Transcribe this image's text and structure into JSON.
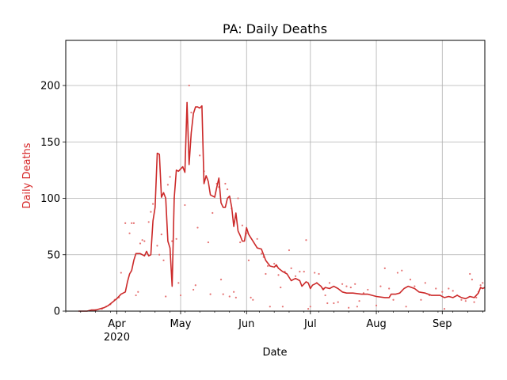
{
  "chart_data": {
    "type": "line",
    "title": "PA: Daily Deaths",
    "xlabel": "Date",
    "ylabel": "Daily Deaths",
    "ylabel_color": "#d62728",
    "line_color": "#cc2a2a",
    "dot_color": "#e57373",
    "grid": true,
    "legend": "none",
    "x_range": [
      "2020-03-08",
      "2020-09-21"
    ],
    "ylim": [
      0,
      240
    ],
    "yticks": [
      0,
      50,
      100,
      150,
      200
    ],
    "xticks": [
      {
        "date": "2020-04-01",
        "label": "Apr",
        "sublabel": "2020"
      },
      {
        "date": "2020-05-01",
        "label": "May",
        "sublabel": ""
      },
      {
        "date": "2020-06-01",
        "label": "Jun",
        "sublabel": ""
      },
      {
        "date": "2020-07-01",
        "label": "Jul",
        "sublabel": ""
      },
      {
        "date": "2020-08-01",
        "label": "Aug",
        "sublabel": ""
      },
      {
        "date": "2020-09-01",
        "label": "Sep",
        "sublabel": ""
      }
    ],
    "series": [
      {
        "kind": "line",
        "points": [
          [
            "2020-03-14",
            0
          ],
          [
            "2020-03-18",
            0
          ],
          [
            "2020-03-20",
            1
          ],
          [
            "2020-03-22",
            1
          ],
          [
            "2020-03-24",
            2
          ],
          [
            "2020-03-26",
            3
          ],
          [
            "2020-03-28",
            5
          ],
          [
            "2020-03-30",
            8
          ],
          [
            "2020-04-01",
            11
          ],
          [
            "2020-04-03",
            15
          ],
          [
            "2020-04-05",
            17
          ],
          [
            "2020-04-06",
            26
          ],
          [
            "2020-04-07",
            33
          ],
          [
            "2020-04-08",
            36
          ],
          [
            "2020-04-09",
            45
          ],
          [
            "2020-04-10",
            51
          ],
          [
            "2020-04-12",
            51
          ],
          [
            "2020-04-14",
            49
          ],
          [
            "2020-04-15",
            53
          ],
          [
            "2020-04-16",
            49
          ],
          [
            "2020-04-17",
            50
          ],
          [
            "2020-04-18",
            80
          ],
          [
            "2020-04-19",
            92
          ],
          [
            "2020-04-20",
            140
          ],
          [
            "2020-04-21",
            139
          ],
          [
            "2020-04-22",
            101
          ],
          [
            "2020-04-23",
            105
          ],
          [
            "2020-04-24",
            100
          ],
          [
            "2020-04-25",
            62
          ],
          [
            "2020-04-26",
            56
          ],
          [
            "2020-04-27",
            22
          ],
          [
            "2020-04-28",
            100
          ],
          [
            "2020-04-29",
            125
          ],
          [
            "2020-04-30",
            124
          ],
          [
            "2020-05-01",
            126
          ],
          [
            "2020-05-02",
            128
          ],
          [
            "2020-05-03",
            123
          ],
          [
            "2020-05-04",
            185
          ],
          [
            "2020-05-05",
            130
          ],
          [
            "2020-05-06",
            158
          ],
          [
            "2020-05-07",
            175
          ],
          [
            "2020-05-08",
            181
          ],
          [
            "2020-05-09",
            181
          ],
          [
            "2020-05-10",
            180
          ],
          [
            "2020-05-11",
            182
          ],
          [
            "2020-05-12",
            113
          ],
          [
            "2020-05-13",
            120
          ],
          [
            "2020-05-14",
            115
          ],
          [
            "2020-05-15",
            103
          ],
          [
            "2020-05-17",
            101
          ],
          [
            "2020-05-18",
            110
          ],
          [
            "2020-05-19",
            118
          ],
          [
            "2020-05-20",
            96
          ],
          [
            "2020-05-21",
            92
          ],
          [
            "2020-05-22",
            92
          ],
          [
            "2020-05-23",
            100
          ],
          [
            "2020-05-24",
            102
          ],
          [
            "2020-05-25",
            92
          ],
          [
            "2020-05-26",
            75
          ],
          [
            "2020-05-27",
            87
          ],
          [
            "2020-05-28",
            71
          ],
          [
            "2020-05-29",
            67
          ],
          [
            "2020-05-30",
            62
          ],
          [
            "2020-05-31",
            62
          ],
          [
            "2020-06-01",
            74
          ],
          [
            "2020-06-02",
            68
          ],
          [
            "2020-06-04",
            62
          ],
          [
            "2020-06-06",
            56
          ],
          [
            "2020-06-08",
            55
          ],
          [
            "2020-06-10",
            45
          ],
          [
            "2020-06-12",
            40
          ],
          [
            "2020-06-14",
            39
          ],
          [
            "2020-06-15",
            41
          ],
          [
            "2020-06-16",
            38
          ],
          [
            "2020-06-18",
            35
          ],
          [
            "2020-06-20",
            33
          ],
          [
            "2020-06-22",
            27
          ],
          [
            "2020-06-24",
            29
          ],
          [
            "2020-06-26",
            27
          ],
          [
            "2020-06-27",
            22
          ],
          [
            "2020-06-29",
            26
          ],
          [
            "2020-06-30",
            25
          ],
          [
            "2020-07-01",
            20
          ],
          [
            "2020-07-02",
            23
          ],
          [
            "2020-07-04",
            25
          ],
          [
            "2020-07-06",
            22
          ],
          [
            "2020-07-07",
            19
          ],
          [
            "2020-07-08",
            21
          ],
          [
            "2020-07-10",
            20
          ],
          [
            "2020-07-12",
            22
          ],
          [
            "2020-07-14",
            20
          ],
          [
            "2020-07-16",
            17
          ],
          [
            "2020-07-18",
            16
          ],
          [
            "2020-07-21",
            16
          ],
          [
            "2020-07-25",
            15
          ],
          [
            "2020-07-28",
            15
          ],
          [
            "2020-08-01",
            13
          ],
          [
            "2020-08-05",
            12
          ],
          [
            "2020-08-07",
            12
          ],
          [
            "2020-08-08",
            15
          ],
          [
            "2020-08-10",
            15
          ],
          [
            "2020-08-12",
            16
          ],
          [
            "2020-08-14",
            20
          ],
          [
            "2020-08-16",
            22
          ],
          [
            "2020-08-19",
            20
          ],
          [
            "2020-08-21",
            17
          ],
          [
            "2020-08-24",
            16
          ],
          [
            "2020-08-27",
            14
          ],
          [
            "2020-08-31",
            14
          ],
          [
            "2020-09-02",
            12
          ],
          [
            "2020-09-04",
            13
          ],
          [
            "2020-09-06",
            12
          ],
          [
            "2020-09-08",
            14
          ],
          [
            "2020-09-10",
            12
          ],
          [
            "2020-09-12",
            11
          ],
          [
            "2020-09-14",
            13
          ],
          [
            "2020-09-16",
            12
          ],
          [
            "2020-09-18",
            16
          ],
          [
            "2020-09-19",
            21
          ],
          [
            "2020-09-20",
            20
          ],
          [
            "2020-09-21",
            21
          ]
        ]
      },
      {
        "kind": "scatter",
        "points": [
          [
            "2020-03-22",
            1
          ],
          [
            "2020-03-25",
            2
          ],
          [
            "2020-03-27",
            4
          ],
          [
            "2020-03-29",
            6
          ],
          [
            "2020-03-31",
            10
          ],
          [
            "2020-04-02",
            12
          ],
          [
            "2020-04-03",
            34
          ],
          [
            "2020-04-05",
            78
          ],
          [
            "2020-04-07",
            69
          ],
          [
            "2020-04-08",
            78
          ],
          [
            "2020-04-09",
            78
          ],
          [
            "2020-04-10",
            14
          ],
          [
            "2020-04-11",
            17
          ],
          [
            "2020-04-12",
            60
          ],
          [
            "2020-04-13",
            63
          ],
          [
            "2020-04-14",
            62
          ],
          [
            "2020-04-16",
            79
          ],
          [
            "2020-04-17",
            88
          ],
          [
            "2020-04-18",
            95
          ],
          [
            "2020-04-20",
            58
          ],
          [
            "2020-04-21",
            50
          ],
          [
            "2020-04-22",
            68
          ],
          [
            "2020-04-23",
            45
          ],
          [
            "2020-04-24",
            13
          ],
          [
            "2020-04-25",
            112
          ],
          [
            "2020-04-26",
            119
          ],
          [
            "2020-04-27",
            62
          ],
          [
            "2020-04-28",
            100
          ],
          [
            "2020-04-29",
            64
          ],
          [
            "2020-04-30",
            25
          ],
          [
            "2020-05-01",
            14
          ],
          [
            "2020-05-03",
            94
          ],
          [
            "2020-05-05",
            200
          ],
          [
            "2020-05-06",
            176
          ],
          [
            "2020-05-07",
            19
          ],
          [
            "2020-05-08",
            23
          ],
          [
            "2020-05-09",
            74
          ],
          [
            "2020-05-10",
            138
          ],
          [
            "2020-05-12",
            124
          ],
          [
            "2020-05-14",
            61
          ],
          [
            "2020-05-15",
            15
          ],
          [
            "2020-05-16",
            87
          ],
          [
            "2020-05-18",
            113
          ],
          [
            "2020-05-19",
            110
          ],
          [
            "2020-05-20",
            28
          ],
          [
            "2020-05-21",
            15
          ],
          [
            "2020-05-22",
            113
          ],
          [
            "2020-05-23",
            108
          ],
          [
            "2020-05-24",
            13
          ],
          [
            "2020-05-25",
            91
          ],
          [
            "2020-05-26",
            17
          ],
          [
            "2020-05-27",
            12
          ],
          [
            "2020-05-28",
            100
          ],
          [
            "2020-05-29",
            61
          ],
          [
            "2020-05-30",
            76
          ],
          [
            "2020-06-01",
            69
          ],
          [
            "2020-06-02",
            45
          ],
          [
            "2020-06-03",
            12
          ],
          [
            "2020-06-04",
            10
          ],
          [
            "2020-06-06",
            64
          ],
          [
            "2020-06-08",
            51
          ],
          [
            "2020-06-09",
            48
          ],
          [
            "2020-06-10",
            33
          ],
          [
            "2020-06-11",
            40
          ],
          [
            "2020-06-12",
            4
          ],
          [
            "2020-06-14",
            42
          ],
          [
            "2020-06-15",
            40
          ],
          [
            "2020-06-16",
            32
          ],
          [
            "2020-06-17",
            21
          ],
          [
            "2020-06-18",
            4
          ],
          [
            "2020-06-19",
            35
          ],
          [
            "2020-06-21",
            54
          ],
          [
            "2020-06-22",
            38
          ],
          [
            "2020-06-24",
            31
          ],
          [
            "2020-06-26",
            35
          ],
          [
            "2020-06-28",
            35
          ],
          [
            "2020-06-29",
            63
          ],
          [
            "2020-06-30",
            2
          ],
          [
            "2020-07-01",
            4
          ],
          [
            "2020-07-03",
            34
          ],
          [
            "2020-07-04",
            25
          ],
          [
            "2020-07-05",
            33
          ],
          [
            "2020-07-07",
            20
          ],
          [
            "2020-07-08",
            14
          ],
          [
            "2020-07-09",
            7
          ],
          [
            "2020-07-10",
            25
          ],
          [
            "2020-07-12",
            7
          ],
          [
            "2020-07-14",
            8
          ],
          [
            "2020-07-16",
            24
          ],
          [
            "2020-07-18",
            22
          ],
          [
            "2020-07-19",
            3
          ],
          [
            "2020-07-20",
            21
          ],
          [
            "2020-07-22",
            24
          ],
          [
            "2020-07-23",
            4
          ],
          [
            "2020-07-24",
            9
          ],
          [
            "2020-07-26",
            16
          ],
          [
            "2020-07-28",
            19
          ],
          [
            "2020-08-01",
            5
          ],
          [
            "2020-08-03",
            22
          ],
          [
            "2020-08-05",
            38
          ],
          [
            "2020-08-07",
            20
          ],
          [
            "2020-08-09",
            10
          ],
          [
            "2020-08-11",
            34
          ],
          [
            "2020-08-13",
            36
          ],
          [
            "2020-08-15",
            4
          ],
          [
            "2020-08-17",
            28
          ],
          [
            "2020-08-19",
            22
          ],
          [
            "2020-08-22",
            10
          ],
          [
            "2020-08-24",
            25
          ],
          [
            "2020-08-26",
            14
          ],
          [
            "2020-08-29",
            20
          ],
          [
            "2020-09-01",
            17
          ],
          [
            "2020-09-02",
            2
          ],
          [
            "2020-09-04",
            20
          ],
          [
            "2020-09-06",
            18
          ],
          [
            "2020-09-08",
            14
          ],
          [
            "2020-09-10",
            10
          ],
          [
            "2020-09-12",
            9
          ],
          [
            "2020-09-14",
            33
          ],
          [
            "2020-09-15",
            28
          ],
          [
            "2020-09-16",
            8
          ],
          [
            "2020-09-17",
            12
          ],
          [
            "2020-09-18",
            17
          ],
          [
            "2020-09-19",
            23
          ],
          [
            "2020-09-20",
            25
          ]
        ]
      }
    ]
  }
}
